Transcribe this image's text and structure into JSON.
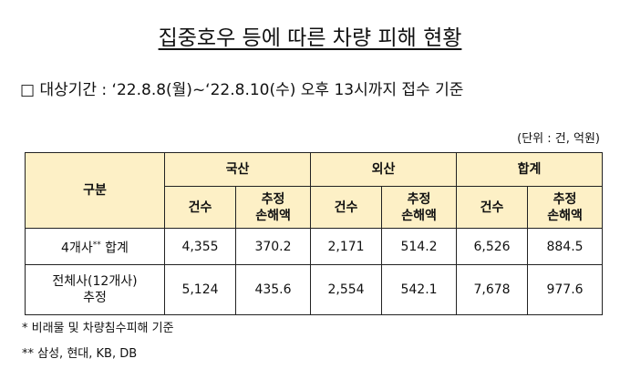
{
  "title": "집중호우 등에 따른 차량 피해 현황",
  "period": "□ 대상기간 : ‘22.8.8(월)~‘22.8.10(수) 오후 13시까지 접수 기준",
  "unit": "(단위 : 건, 억원)",
  "table": {
    "corner": "구분",
    "groups": [
      "국산",
      "외산",
      "합계"
    ],
    "subheaders": [
      [
        "건수"
      ],
      [
        "추정",
        "손해액"
      ]
    ],
    "rows": [
      {
        "label": [
          "4개사"
        ],
        "label_sup": "**",
        "label_rest": "합계",
        "cells": [
          "4,355",
          "370.2",
          "2,171",
          "514.2",
          "6,526",
          "884.5"
        ]
      },
      {
        "label": [
          "전체사(12개사)",
          "추정"
        ],
        "cells": [
          "5,124",
          "435.6",
          "2,554",
          "542.1",
          "7,678",
          "977.6"
        ]
      }
    ]
  },
  "notes": [
    "* 비래물 및 차량침수피해 기준",
    "** 삼성, 현대, KB, DB"
  ]
}
